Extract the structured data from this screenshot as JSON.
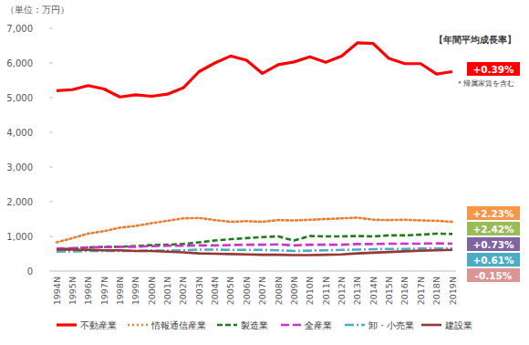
{
  "chart_data": {
    "type": "line",
    "y_label": "（単位：万円）",
    "categories": [
      "1994N",
      "1995N",
      "1996N",
      "1997N",
      "1998N",
      "1999N",
      "2000N",
      "2001N",
      "2002N",
      "2003N",
      "2004N",
      "2005N",
      "2006N",
      "2007N",
      "2008N",
      "2009N",
      "2010N",
      "2011N",
      "2012N",
      "2013N",
      "2014N",
      "2015N",
      "2016N",
      "2017N",
      "2018N",
      "2019N"
    ],
    "series": [
      {
        "name": "不動産業",
        "color": "#ff0000",
        "line_style": "solid",
        "values": [
          5200,
          5230,
          5350,
          5250,
          5020,
          5080,
          5040,
          5100,
          5280,
          5750,
          6000,
          6200,
          6080,
          5700,
          5950,
          6030,
          6180,
          6020,
          6200,
          6580,
          6560,
          6130,
          5980,
          5980,
          5680,
          5750
        ]
      },
      {
        "name": "情報通信産業",
        "color": "#ed7d31",
        "line_style": "dotted",
        "values": [
          830,
          950,
          1080,
          1150,
          1250,
          1300,
          1380,
          1450,
          1520,
          1530,
          1470,
          1420,
          1440,
          1420,
          1470,
          1460,
          1480,
          1500,
          1520,
          1540,
          1480,
          1470,
          1480,
          1460,
          1450,
          1420
        ]
      },
      {
        "name": "製造業",
        "color": "#1e7b1e",
        "line_style": "dashed",
        "values": [
          620,
          650,
          680,
          700,
          700,
          720,
          750,
          760,
          780,
          830,
          880,
          920,
          950,
          980,
          1000,
          880,
          1010,
          1000,
          1000,
          1010,
          1000,
          1030,
          1030,
          1050,
          1080,
          1070
        ]
      },
      {
        "name": "全産業",
        "color": "#cc33cc",
        "line_style": "longdash",
        "values": [
          650,
          660,
          680,
          690,
          700,
          700,
          720,
          730,
          730,
          740,
          740,
          750,
          760,
          760,
          770,
          740,
          760,
          760,
          760,
          780,
          780,
          790,
          790,
          790,
          800,
          790
        ]
      },
      {
        "name": "卸・小売業",
        "color": "#4bacc6",
        "line_style": "dashdot",
        "values": [
          560,
          570,
          580,
          580,
          580,
          580,
          590,
          590,
          600,
          620,
          620,
          610,
          610,
          610,
          600,
          580,
          590,
          600,
          610,
          620,
          630,
          640,
          640,
          650,
          650,
          650
        ]
      },
      {
        "name": "建設業",
        "color": "#953735",
        "line_style": "solid",
        "values": [
          620,
          620,
          610,
          600,
          600,
          580,
          580,
          560,
          540,
          510,
          500,
          490,
          480,
          470,
          470,
          460,
          460,
          470,
          480,
          510,
          530,
          550,
          570,
          590,
          600,
          610
        ]
      }
    ],
    "ylim": [
      0,
      7000
    ],
    "yticks": [
      0,
      {
        "value": 1000,
        "label": "1,000"
      },
      {
        "value": 2000,
        "label": "2,000"
      },
      {
        "value": 3000,
        "label": "3,000"
      },
      {
        "value": 4000,
        "label": "4,000"
      },
      {
        "value": 5000,
        "label": "5,000"
      },
      {
        "value": 6000,
        "label": "6,000"
      },
      {
        "value": 7000,
        "label": "7,000"
      }
    ],
    "grid": false,
    "legend": "bottom",
    "annotations": [
      {
        "text": "【年間平均成長率】"
      },
      {
        "text": "+0.39%",
        "color": "#ff0000"
      },
      {
        "text": "＊帰属家賃を含む"
      },
      {
        "text": "+2.23%",
        "color": "#f79646"
      },
      {
        "text": "+2.42%",
        "color": "#9bbb59"
      },
      {
        "text": "+0.73%",
        "color": "#8064a2"
      },
      {
        "text": "+0.61%",
        "color": "#4bacc6"
      },
      {
        "text": "-0.15%",
        "color": "#d99694"
      }
    ]
  }
}
